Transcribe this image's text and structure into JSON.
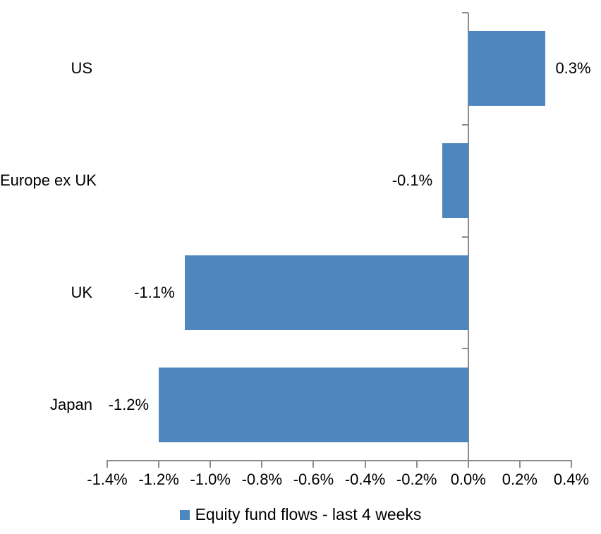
{
  "chart_data": {
    "type": "bar",
    "orientation": "horizontal",
    "title": "",
    "categories": [
      "US",
      "Europe ex UK",
      "UK",
      "Japan"
    ],
    "values": [
      0.3,
      -0.1,
      -1.1,
      -1.2
    ],
    "data_labels": [
      "0.3%",
      "-0.1%",
      "-1.1%",
      "-1.2%"
    ],
    "xlim": [
      -1.4,
      0.4
    ],
    "x_tick_values": [
      -1.4,
      -1.2,
      -1.0,
      -0.8,
      -0.6,
      -0.4,
      -0.2,
      0.0,
      0.2,
      0.4
    ],
    "x_tick_labels": [
      "-1.4%",
      "-1.2%",
      "-1.0%",
      "-0.8%",
      "-0.6%",
      "-0.4%",
      "-0.2%",
      "0.0%",
      "0.2%",
      "0.4%"
    ],
    "grid": false,
    "legend": {
      "position": "bottom",
      "entries": [
        {
          "label": "Equity fund flows - last 4 weeks",
          "color": "#4E87BD"
        }
      ]
    },
    "colors": {
      "bar": "#4E87BD",
      "axis": "#8C8C8C",
      "text": "#000000",
      "background": "#FFFFFF"
    }
  }
}
